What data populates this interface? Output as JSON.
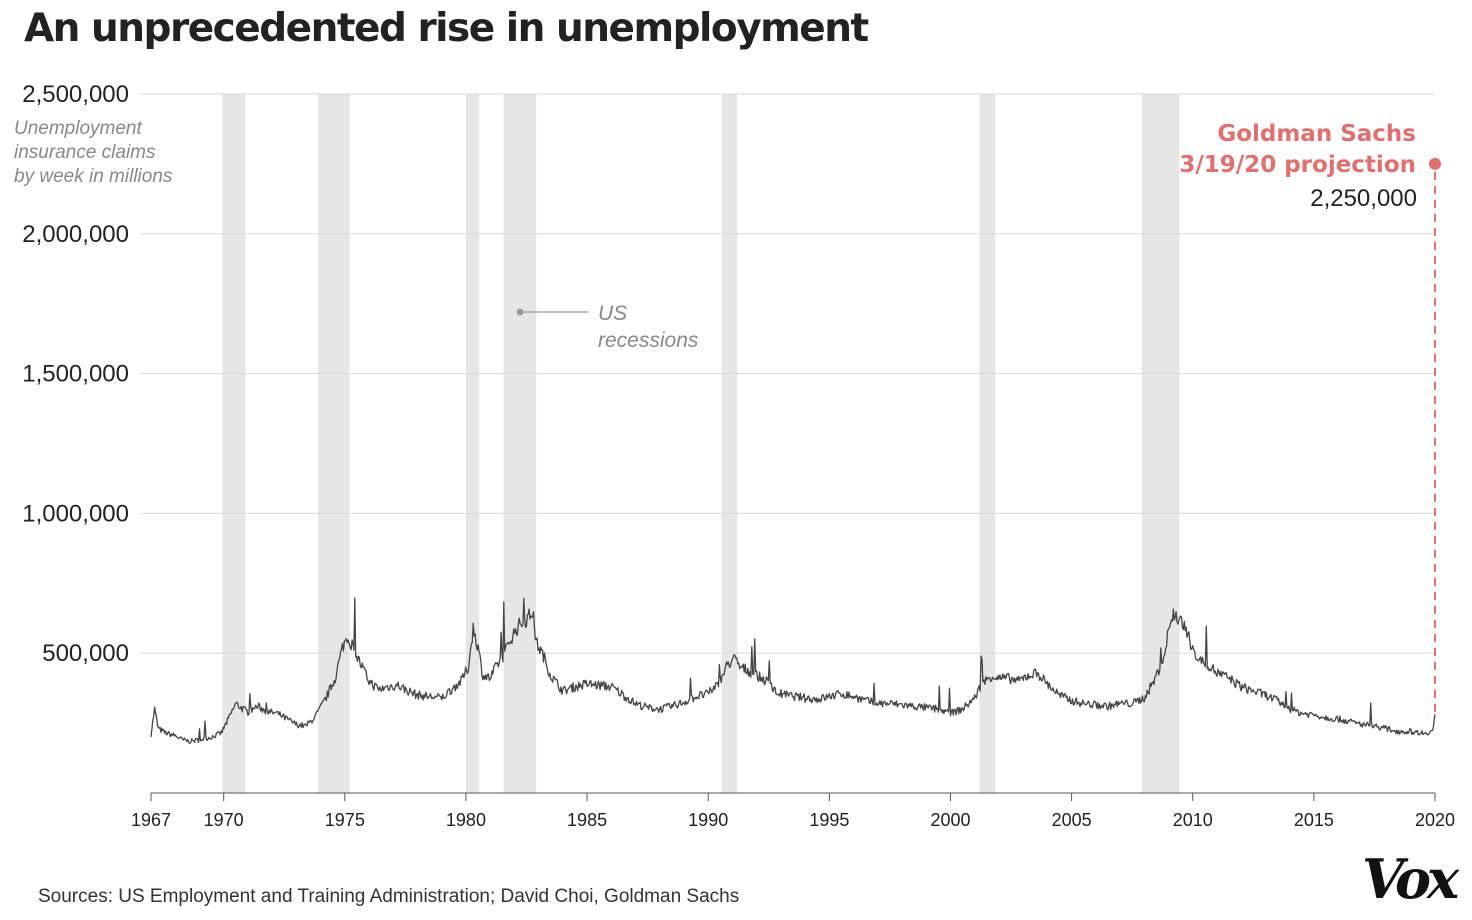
{
  "title": "An unprecedented rise in unemployment",
  "source": "Sources: US Employment and Training Administration; David Choi, Goldman Sachs",
  "logo": "Vox",
  "colors": {
    "line": "#444444",
    "recession_band": "#e6e6e6",
    "projection": "#e07070",
    "grid": "#d9d9d9",
    "axis_text": "#222222",
    "note_text": "#888888"
  },
  "chart_data": {
    "type": "line",
    "title": "An unprecedented rise in unemployment",
    "ylabel": "Unemployment insurance claims by week in millions",
    "ylabel_lines": [
      "Unemployment",
      "insurance claims",
      "by week in millions"
    ],
    "ylim": [
      0,
      2500000
    ],
    "xlim": [
      1967,
      2020
    ],
    "y_ticks": [
      500000,
      1000000,
      1500000,
      2000000,
      2500000
    ],
    "y_tick_labels": [
      "500,000",
      "1,000,000",
      "1,500,000",
      "2,000,000",
      "2,500,000"
    ],
    "x_ticks": [
      1967,
      1970,
      1975,
      1980,
      1985,
      1990,
      1995,
      2000,
      2005,
      2010,
      2015,
      2020
    ],
    "x_tick_labels": [
      "1967",
      "1970",
      "1975",
      "1980",
      "1985",
      "1990",
      "1995",
      "2000",
      "2005",
      "2010",
      "2015",
      "2020"
    ],
    "grid": true,
    "recessions": [
      [
        1969.95,
        1970.9
      ],
      [
        1973.9,
        1975.2
      ],
      [
        1980.0,
        1980.55
      ],
      [
        1981.55,
        1982.9
      ],
      [
        1990.55,
        1991.2
      ],
      [
        2001.2,
        2001.85
      ],
      [
        2007.9,
        2009.45
      ]
    ],
    "recession_label_lines": [
      "US",
      "recessions"
    ],
    "series": [
      {
        "x": [
          1967.0,
          1967.15,
          1967.3,
          1967.6,
          1968.0,
          1968.3,
          1968.6,
          1969.0,
          1969.5,
          1969.9,
          1970.2,
          1970.5,
          1970.8,
          1971.0,
          1971.4,
          1971.8,
          1972.2,
          1972.6,
          1973.0,
          1973.4,
          1973.8,
          1974.2,
          1974.6,
          1974.9,
          1975.1,
          1975.3,
          1975.6,
          1976.0,
          1976.4,
          1976.8,
          1977.2,
          1977.5,
          1978.0,
          1978.5,
          1979.0,
          1979.4,
          1979.8,
          1980.1,
          1980.3,
          1980.5,
          1980.7,
          1981.0,
          1981.3,
          1981.6,
          1981.9,
          1982.2,
          1982.5,
          1982.75,
          1982.9,
          1983.2,
          1983.5,
          1984.0,
          1984.5,
          1985.0,
          1985.5,
          1986.0,
          1986.5,
          1987.0,
          1987.5,
          1988.0,
          1988.5,
          1989.0,
          1989.5,
          1990.0,
          1990.5,
          1990.8,
          1991.1,
          1991.3,
          1991.6,
          1992.0,
          1992.4,
          1992.8,
          1993.2,
          1993.6,
          1994.0,
          1994.5,
          1995.0,
          1995.5,
          1996.0,
          1996.5,
          1997.0,
          1997.5,
          1998.0,
          1998.5,
          1999.0,
          1999.5,
          2000.0,
          2000.5,
          2001.0,
          2001.3,
          2001.7,
          2002.0,
          2002.4,
          2002.8,
          2003.2,
          2003.6,
          2004.0,
          2004.5,
          2005.0,
          2005.5,
          2006.0,
          2006.5,
          2007.0,
          2007.5,
          2008.0,
          2008.4,
          2008.8,
          2009.0,
          2009.2,
          2009.5,
          2009.8,
          2010.2,
          2010.6,
          2011.0,
          2011.5,
          2012.0,
          2012.5,
          2013.0,
          2013.5,
          2014.0,
          2014.5,
          2015.0,
          2015.5,
          2016.0,
          2016.5,
          2017.0,
          2017.5,
          2018.0,
          2018.5,
          2019.0,
          2019.5,
          2019.9,
          2020.0
        ],
        "values": [
          210000,
          300000,
          230000,
          215000,
          205000,
          190000,
          185000,
          190000,
          200000,
          215000,
          265000,
          320000,
          300000,
          290000,
          310000,
          290000,
          285000,
          265000,
          245000,
          240000,
          275000,
          335000,
          410000,
          520000,
          560000,
          530000,
          470000,
          400000,
          370000,
          380000,
          385000,
          370000,
          350000,
          345000,
          340000,
          370000,
          400000,
          450000,
          590000,
          520000,
          420000,
          410000,
          460000,
          500000,
          560000,
          600000,
          620000,
          650000,
          540000,
          490000,
          420000,
          365000,
          380000,
          390000,
          385000,
          380000,
          350000,
          320000,
          305000,
          300000,
          310000,
          325000,
          345000,
          355000,
          400000,
          460000,
          480000,
          450000,
          440000,
          420000,
          400000,
          360000,
          350000,
          345000,
          340000,
          335000,
          345000,
          355000,
          345000,
          330000,
          320000,
          320000,
          315000,
          310000,
          305000,
          300000,
          285000,
          300000,
          340000,
          390000,
          420000,
          410000,
          410000,
          400000,
          420000,
          430000,
          390000,
          350000,
          330000,
          320000,
          315000,
          310000,
          320000,
          320000,
          340000,
          400000,
          480000,
          580000,
          640000,
          620000,
          560000,
          480000,
          460000,
          430000,
          410000,
          380000,
          365000,
          350000,
          330000,
          300000,
          285000,
          280000,
          270000,
          265000,
          255000,
          245000,
          240000,
          230000,
          220000,
          220000,
          215000,
          220000,
          281000
        ]
      }
    ],
    "projection": {
      "x": 2020,
      "value": 2250000,
      "label_lines": [
        "Goldman Sachs",
        "3/19/20 projection"
      ],
      "value_label": "2,250,000"
    }
  }
}
